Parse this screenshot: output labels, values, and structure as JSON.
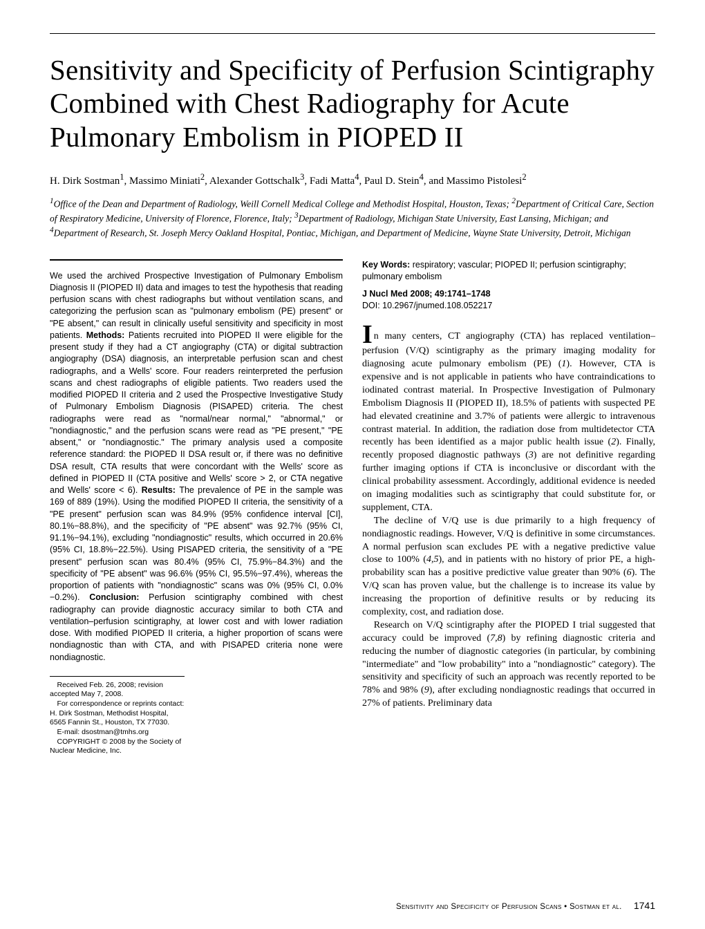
{
  "title": "Sensitivity and Specificity of Perfusion Scintigraphy Combined with Chest Radiography for Acute Pulmonary Embolism in PIOPED II",
  "authors_html": "H. Dirk Sostman<sup>1</sup>, Massimo Miniati<sup>2</sup>, Alexander Gottschalk<sup>3</sup>, Fadi Matta<sup>4</sup>, Paul D. Stein<sup>4</sup>, and Massimo Pistolesi<sup>2</sup>",
  "affiliations_html": "<sup>1</sup>Office of the Dean and Department of Radiology, Weill Cornell Medical College and Methodist Hospital, Houston, Texas; <sup>2</sup>Department of Critical Care, Section of Respiratory Medicine, University of Florence, Florence, Italy; <sup>3</sup>Department of Radiology, Michigan State University, East Lansing, Michigan; and <sup>4</sup>Department of Research, St. Joseph Mercy Oakland Hospital, Pontiac, Michigan, and Department of Medicine, Wayne State University, Detroit, Michigan",
  "abstract": {
    "lead": "We used the archived Prospective Investigation of Pulmonary Embolism Diagnosis II (PIOPED II) data and images to test the hypothesis that reading perfusion scans with chest radiographs but without ventilation scans, and categorizing the perfusion scan as \"pulmonary embolism (PE) present\" or \"PE absent,\" can result in clinically useful sensitivity and specificity in most patients. ",
    "methods_label": "Methods: ",
    "methods": "Patients recruited into PIOPED II were eligible for the present study if they had a CT angiography (CTA) or digital subtraction angiography (DSA) diagnosis, an interpretable perfusion scan and chest radiographs, and a Wells' score. Four readers reinterpreted the perfusion scans and chest radiographs of eligible patients. Two readers used the modified PIOPED II criteria and 2 used the Prospective Investigative Study of Pulmonary Embolism Diagnosis (PISAPED) criteria. The chest radiographs were read as \"normal/near normal,\" \"abnormal,\" or \"nondiagnostic,\" and the perfusion scans were read as \"PE present,\" \"PE absent,\" or \"nondiagnostic.\" The primary analysis used a composite reference standard: the PIOPED II DSA result or, if there was no definitive DSA result, CTA results that were concordant with the Wells' score as defined in PIOPED II (CTA positive and Wells' score > 2, or CTA negative and Wells' score < 6). ",
    "results_label": "Results: ",
    "results": "The prevalence of PE in the sample was 169 of 889 (19%). Using the modified PIOPED II criteria, the sensitivity of a \"PE present\" perfusion scan was 84.9% (95% confidence interval [CI], 80.1%−88.8%), and the specificity of \"PE absent\" was 92.7% (95% CI, 91.1%−94.1%), excluding \"nondiagnostic\" results, which occurred in 20.6% (95% CI, 18.8%−22.5%). Using PISAPED criteria, the sensitivity of a \"PE present\" perfusion scan was 80.4% (95% CI, 75.9%−84.3%) and the specificity of \"PE absent\" was 96.6% (95% CI, 95.5%−97.4%), whereas the proportion of patients with \"nondiagnostic\" scans was 0% (95% CI, 0.0%−0.2%). ",
    "conclusion_label": "Conclusion: ",
    "conclusion": "Perfusion scintigraphy combined with chest radiography can provide diagnostic accuracy similar to both CTA and ventilation–perfusion scintigraphy, at lower cost and with lower radiation dose. With modified PIOPED II criteria, a higher proportion of scans were nondiagnostic than with CTA, and with PISAPED criteria none were nondiagnostic."
  },
  "keywords": {
    "label": "Key Words: ",
    "text": "respiratory; vascular; PIOPED II; perfusion scintigraphy; pulmonary embolism"
  },
  "citation": "J Nucl Med 2008; 49:1741–1748",
  "doi": "DOI: 10.2967/jnumed.108.052217",
  "body": {
    "p1_html": "<span class=\"dropcap\">I</span>n many centers, CT angiography (CTA) has replaced ventilation–perfusion (V/Q) scintigraphy as the primary imaging modality for diagnosing acute pulmonary embolism (PE) (<i>1</i>). However, CTA is expensive and is not applicable in patients who have contraindications to iodinated contrast material. In Prospective Investigation of Pulmonary Embolism Diagnosis II (PIOPED II), 18.5% of patients with suspected PE had elevated creatinine and 3.7% of patients were allergic to intravenous contrast material. In addition, the radiation dose from multidetector CTA recently has been identified as a major public health issue (<i>2</i>). Finally, recently proposed diagnostic pathways (<i>3</i>) are not definitive regarding further imaging options if CTA is inconclusive or discordant with the clinical probability assessment. Accordingly, additional evidence is needed on imaging modalities such as scintigraphy that could substitute for, or supplement, CTA.",
    "p2_html": "The decline of V/Q use is due primarily to a high frequency of nondiagnostic readings. However, V/Q is definitive in some circumstances. A normal perfusion scan excludes PE with a negative predictive value close to 100% (<i>4,5</i>), and in patients with no history of prior PE, a high-probability scan has a positive predictive value greater than 90% (<i>6</i>). The V/Q scan has proven value, but the challenge is to increase its value by increasing the proportion of definitive results or by reducing its complexity, cost, and radiation dose.",
    "p3_html": "Research on V/Q scintigraphy after the PIOPED I trial suggested that accuracy could be improved (<i>7,8</i>) by refining diagnostic criteria and reducing the number of diagnostic categories (in particular, by combining \"intermediate\" and \"low probability\" into a \"nondiagnostic\" category). The sensitivity and specificity of such an approach was recently reported to be 78% and 98% (<i>9</i>), after excluding nondiagnostic readings that occurred in 27% of patients. Preliminary data"
  },
  "footnotes": {
    "received": "Received Feb. 26, 2008; revision accepted May 7, 2008.",
    "correspondence": "For correspondence or reprints contact: H. Dirk Sostman, Methodist Hospital, 6565 Fannin St., Houston, TX 77030.",
    "email": "E-mail: dsostman@tmhs.org",
    "copyright": "COPYRIGHT © 2008 by the Society of Nuclear Medicine, Inc."
  },
  "footer": {
    "running_head": "Sensitivity and Specificity of Perfusion Scans • Sostman et al.",
    "page": "1741"
  }
}
